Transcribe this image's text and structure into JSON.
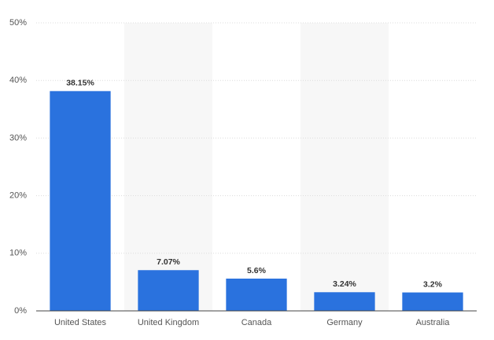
{
  "chart_data": {
    "type": "bar",
    "categories": [
      "United States",
      "United Kingdom",
      "Canada",
      "Germany",
      "Australia"
    ],
    "values": [
      38.15,
      7.07,
      5.6,
      3.24,
      3.2
    ],
    "value_labels": [
      "38.15%",
      "7.07%",
      "5.6%",
      "3.24%",
      "3.2%"
    ],
    "color": "#2a72de",
    "ylim": [
      0,
      50
    ],
    "yticks": [
      {
        "value": 0,
        "label": "0%"
      },
      {
        "value": 10,
        "label": "10%"
      },
      {
        "value": 20,
        "label": "20%"
      },
      {
        "value": 30,
        "label": "30%"
      },
      {
        "value": 40,
        "label": "40%"
      },
      {
        "value": 50,
        "label": "50%"
      }
    ],
    "grid": true
  }
}
